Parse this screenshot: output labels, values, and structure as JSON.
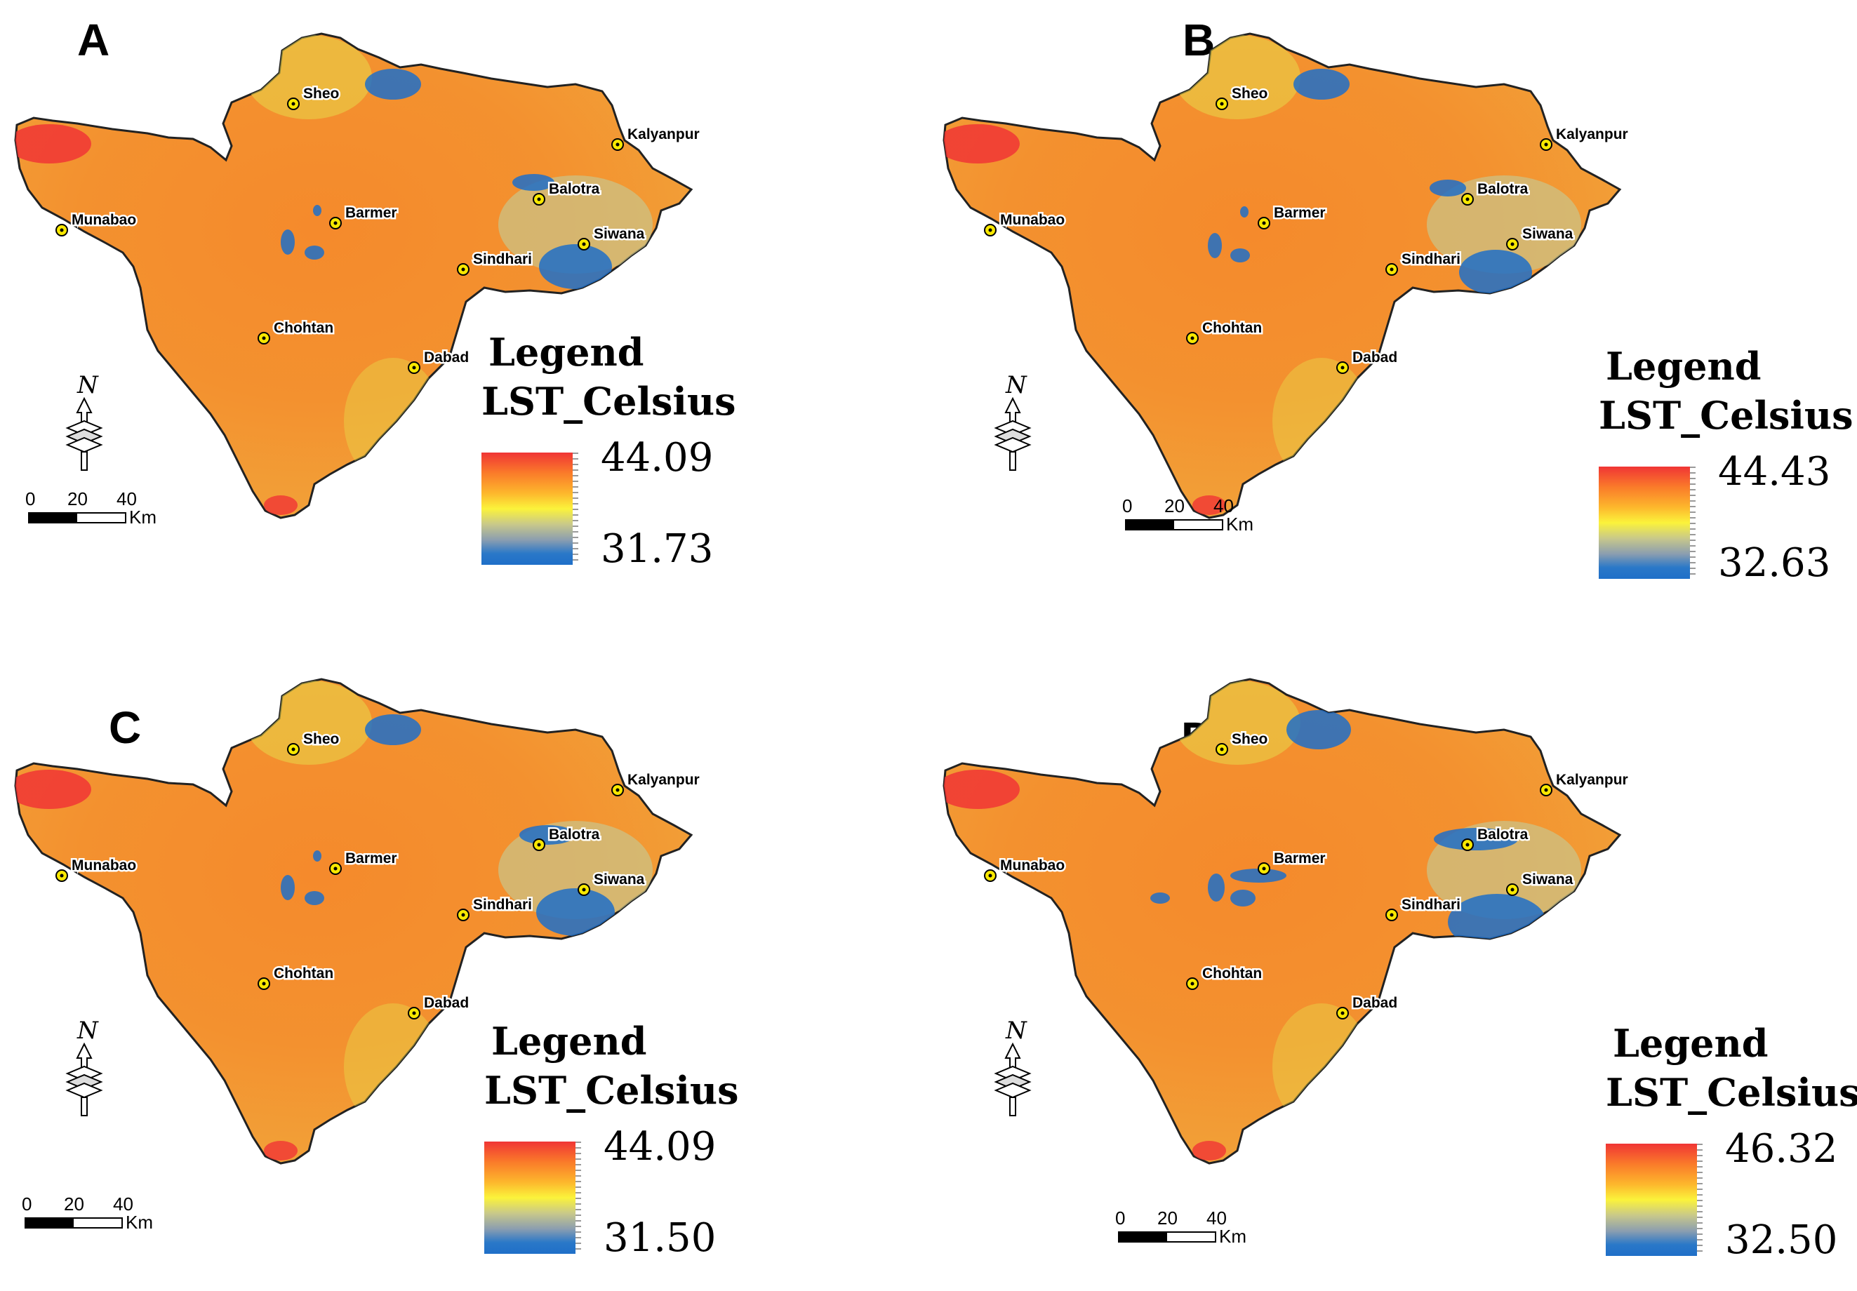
{
  "figure": {
    "panels": [
      {
        "letter": "A",
        "legend_title": "Legend",
        "legend_field": "LST_Celsius",
        "max": "44.09",
        "min": "31.73",
        "scale": {
          "ticks": [
            "0",
            "20",
            "40"
          ],
          "unit": "Km"
        }
      },
      {
        "letter": "B",
        "legend_title": "Legend",
        "legend_field": "LST_Celsius",
        "max": "44.43",
        "min": "32.63",
        "scale": {
          "ticks": [
            "0",
            "20",
            "40"
          ],
          "unit": "Km"
        }
      },
      {
        "letter": "C",
        "legend_title": "Legend",
        "legend_field": "LST_Celsius",
        "max": "44.09",
        "min": "31.50",
        "scale": {
          "ticks": [
            "0",
            "20",
            "40"
          ],
          "unit": "Km"
        }
      },
      {
        "letter": "D",
        "legend_title": "Legend",
        "legend_field": "LST_Celsius",
        "max": "46.32",
        "min": "32.50",
        "scale": {
          "ticks": [
            "0",
            "20",
            "40"
          ],
          "unit": "Km"
        }
      }
    ],
    "towns": [
      "Sheo",
      "Kalyanpur",
      "Balotra",
      "Munabao",
      "Barmer",
      "Siwana",
      "Sindhari",
      "Chohtan",
      "Dabad"
    ],
    "north_label": "N",
    "colors": {
      "hot": "#f03535",
      "warm": "#fa7a2a",
      "mid": "#fbf33b",
      "cool": "#8a9db0",
      "cold": "#1f6fc8"
    }
  }
}
